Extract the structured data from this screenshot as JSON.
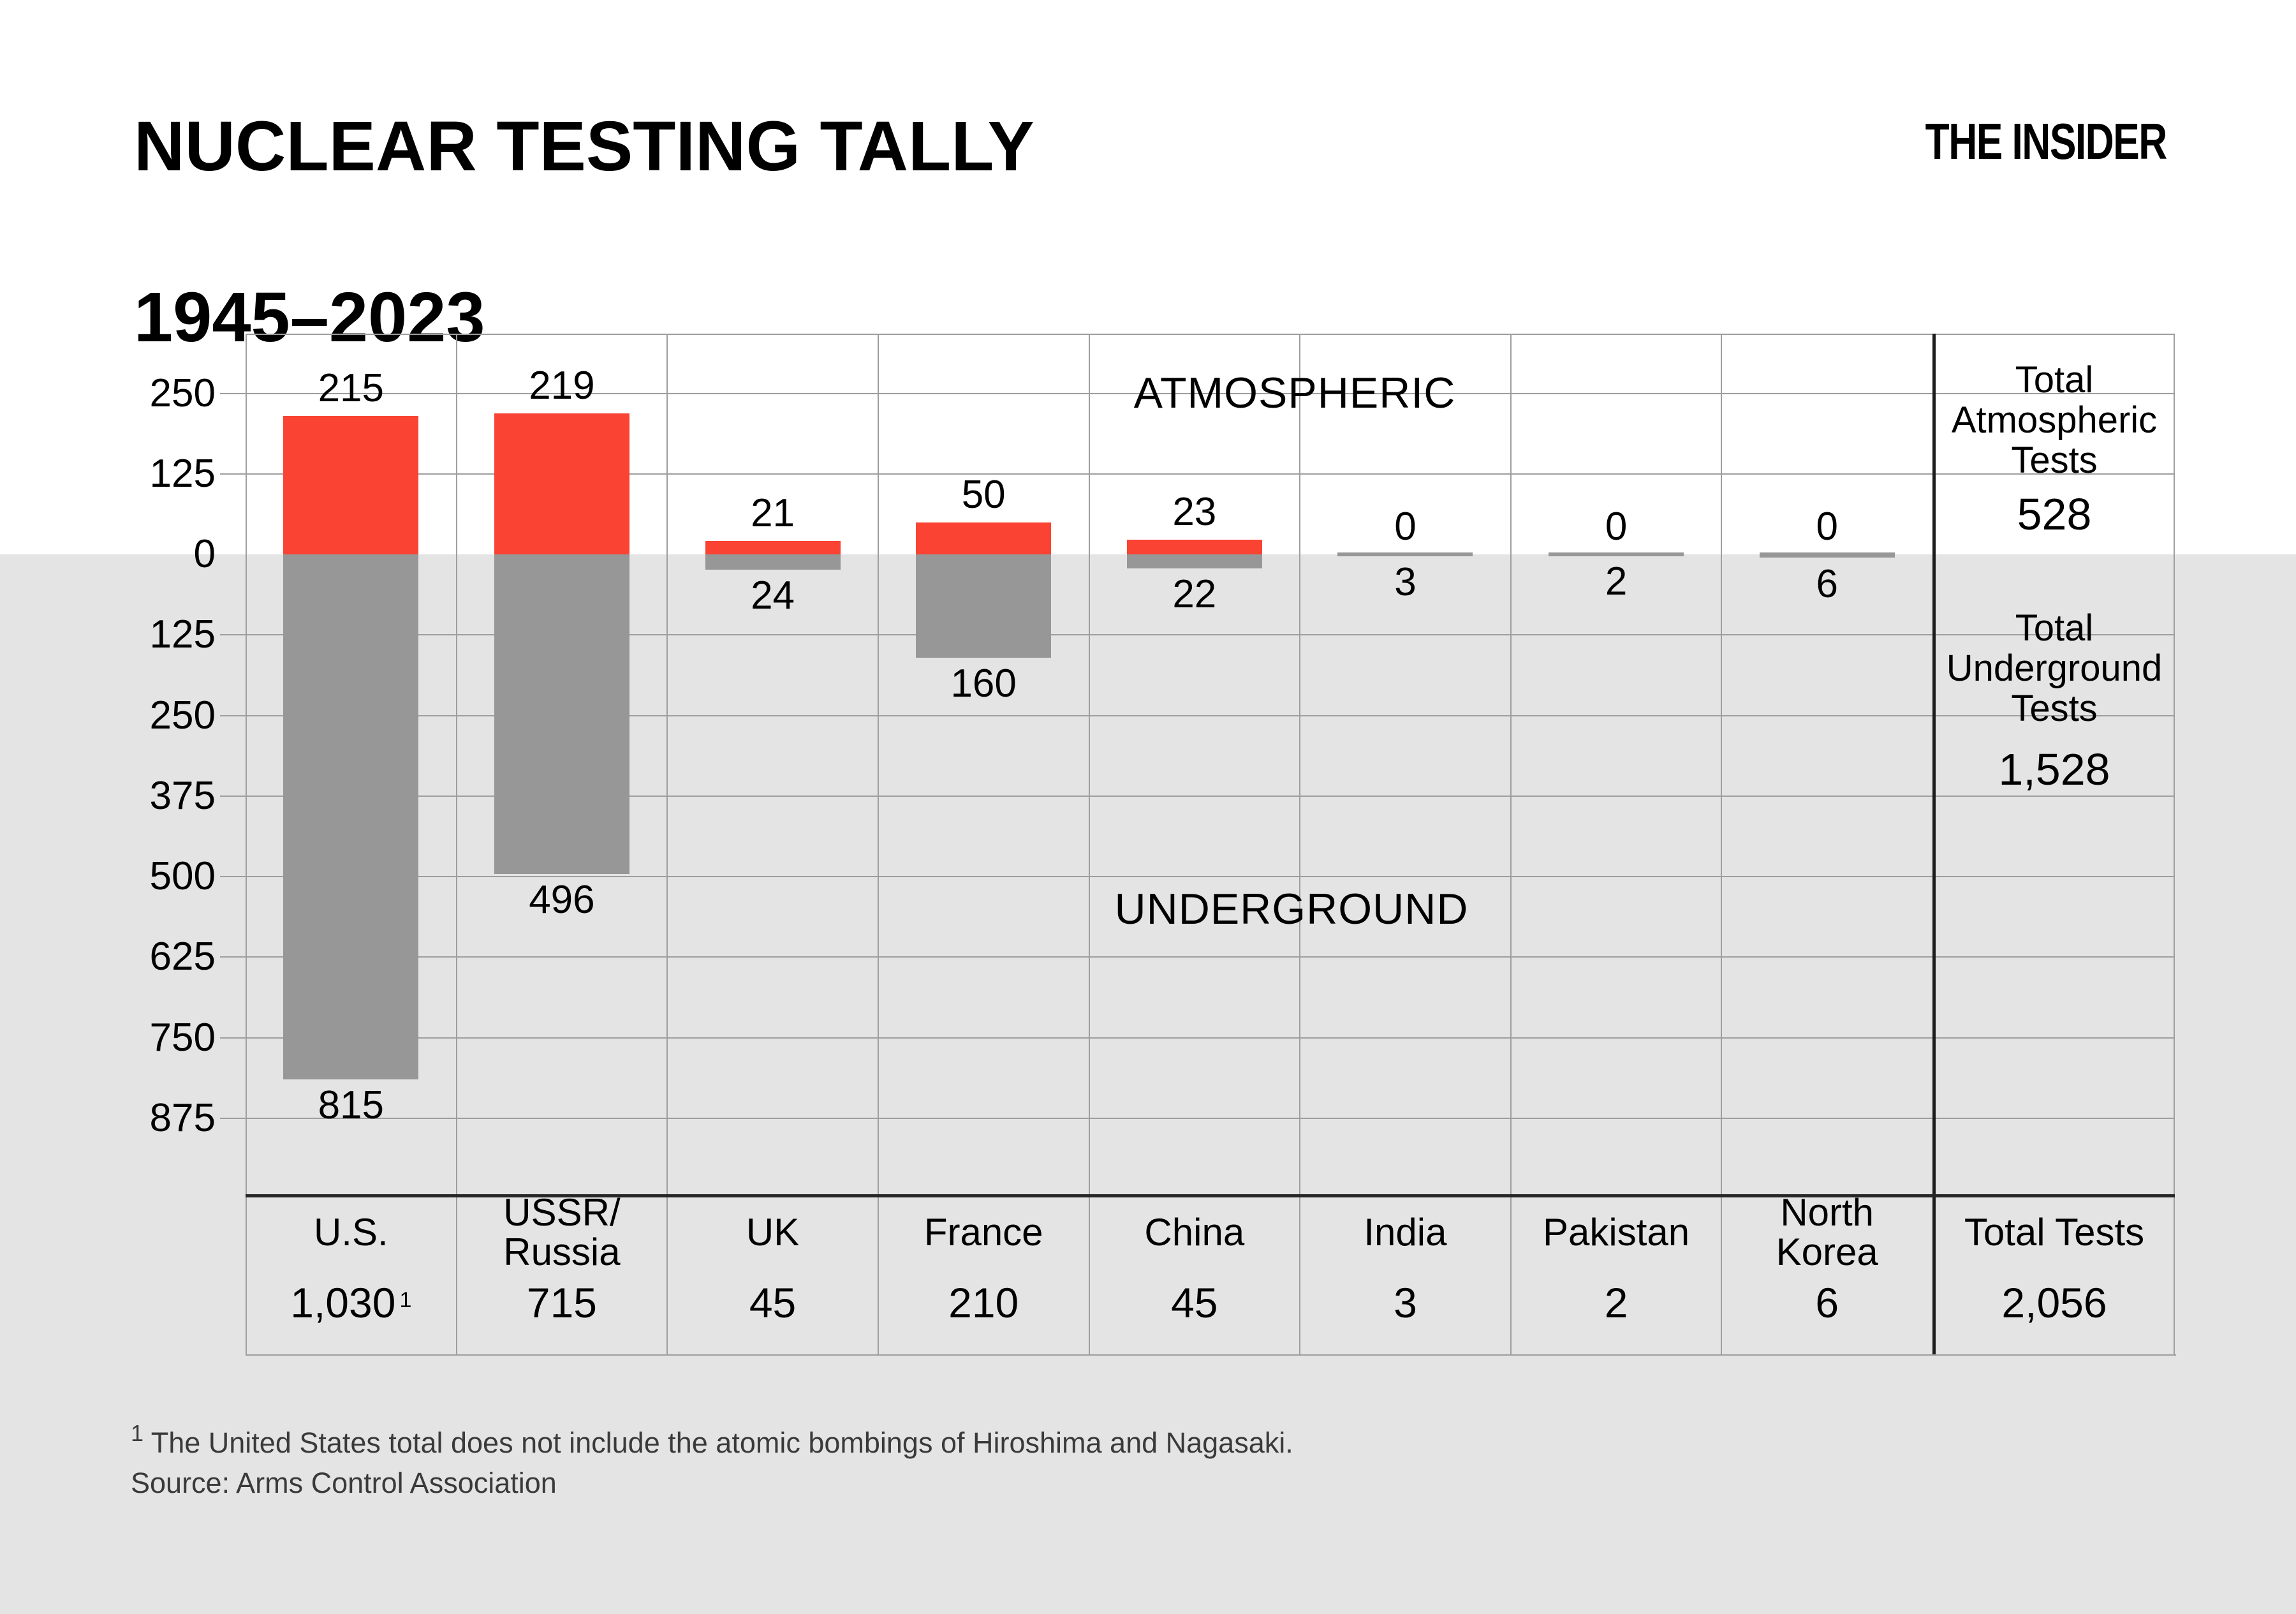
{
  "header": {
    "title_line1": "NUCLEAR TESTING TALLY",
    "title_line2": "1945–2023",
    "logo": "THE INSIDER"
  },
  "chart_data": {
    "type": "bar",
    "subtype": "diverging-stacked",
    "title": "NUCLEAR TESTING TALLY 1945–2023",
    "section_labels": {
      "above": "ATMOSPHERIC",
      "below": "UNDERGROUND"
    },
    "legend_position": "in-plot-text",
    "grid": true,
    "colors": {
      "atmospheric": "#fb4333",
      "underground": "#979797",
      "below_zero_background": "#e4e4e4"
    },
    "series_names": [
      "Atmospheric",
      "Underground"
    ],
    "categories": [
      "U.S.",
      "USSR/Russia",
      "UK",
      "France",
      "China",
      "India",
      "Pakistan",
      "North Korea"
    ],
    "countries": [
      {
        "name_lines": [
          "U.S."
        ],
        "atmospheric": 215,
        "underground": 815,
        "total": "1,030",
        "total_sup": "1"
      },
      {
        "name_lines": [
          "USSR/",
          "Russia"
        ],
        "atmospheric": 219,
        "underground": 496,
        "total": "715"
      },
      {
        "name_lines": [
          "UK"
        ],
        "atmospheric": 21,
        "underground": 24,
        "total": "45"
      },
      {
        "name_lines": [
          "France"
        ],
        "atmospheric": 50,
        "underground": 160,
        "total": "210"
      },
      {
        "name_lines": [
          "China"
        ],
        "atmospheric": 23,
        "underground": 22,
        "total": "45"
      },
      {
        "name_lines": [
          "India"
        ],
        "atmospheric": 0,
        "underground": 3,
        "total": "3"
      },
      {
        "name_lines": [
          "Pakistan"
        ],
        "atmospheric": 0,
        "underground": 2,
        "total": "2"
      },
      {
        "name_lines": [
          "North",
          "Korea"
        ],
        "atmospheric": 0,
        "underground": 6,
        "total": "6"
      }
    ],
    "y_axis": {
      "ticks": [
        {
          "label": "250",
          "value": 250
        },
        {
          "label": "125",
          "value": 125
        },
        {
          "label": "0",
          "value": 0
        },
        {
          "label": "125",
          "value": -125
        },
        {
          "label": "250",
          "value": -250
        },
        {
          "label": "375",
          "value": -375
        },
        {
          "label": "500",
          "value": -500
        },
        {
          "label": "625",
          "value": -625
        },
        {
          "label": "750",
          "value": -750
        },
        {
          "label": "875",
          "value": -875
        }
      ],
      "ylim_top": 340,
      "ylim_bottom": -990
    },
    "totals_panel": {
      "atmospheric_label": "Total Atmospheric Tests",
      "atmospheric_value": "528",
      "underground_label": "Total Underground Tests",
      "underground_value": "1,528",
      "total_label": "Total Tests",
      "total_value": "2,056"
    }
  },
  "footnotes": {
    "note1_sup": "1",
    "note1_text": "The United States total does not include the atomic bombings of Hiroshima and Nagasaki.",
    "source": "Source: Arms Control Association"
  }
}
